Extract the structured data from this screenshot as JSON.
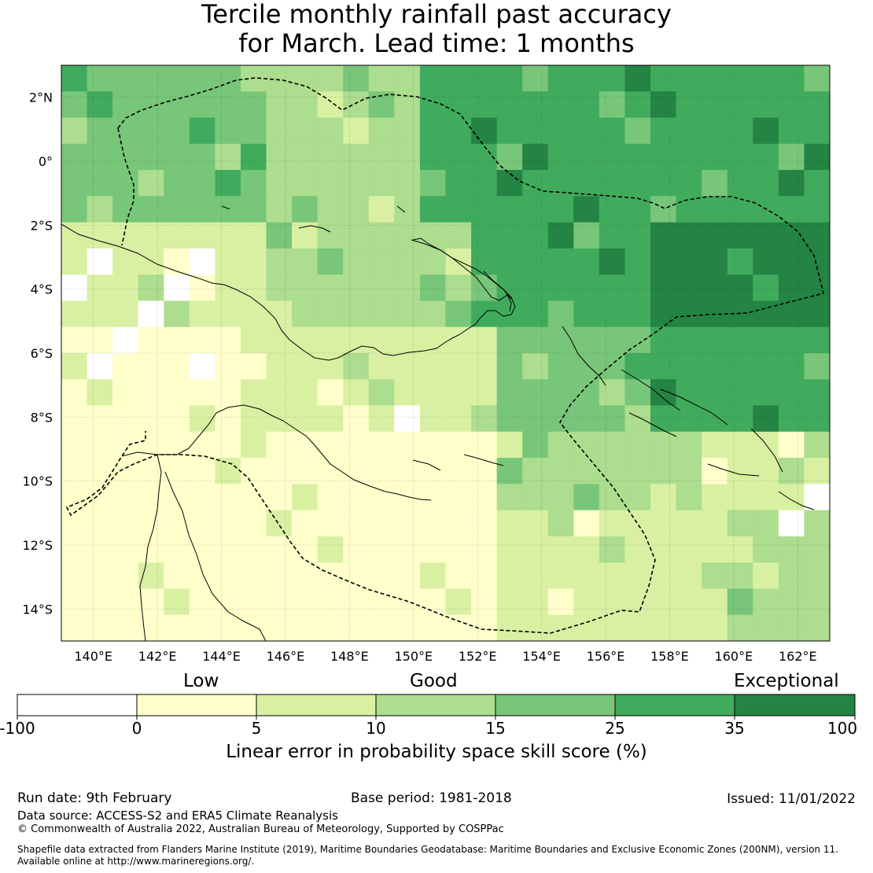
{
  "title": {
    "line1": "Tercile monthly rainfall past accuracy",
    "line2": "for March. Lead time: 1 months"
  },
  "map": {
    "lon_labels": [
      "140°E",
      "142°E",
      "144°E",
      "146°E",
      "148°E",
      "150°E",
      "152°E",
      "154°E",
      "156°E",
      "158°E",
      "160°E",
      "162°E"
    ],
    "lat_labels": [
      "2°N",
      "0°",
      "2°S",
      "4°S",
      "6°S",
      "8°S",
      "10°S",
      "12°S",
      "14°S"
    ],
    "lon_range": [
      139,
      163
    ],
    "lat_range": [
      -15,
      3
    ],
    "colors": {
      "neg": "#ffffff",
      "c0_5": "#ffffcc",
      "c5_10": "#d9f0a3",
      "c10_15": "#addd8e",
      "c15_25": "#78c679",
      "c25_35": "#41ab5d",
      "c35_100": "#238443"
    }
  },
  "colorbar": {
    "category_labels": [
      "Low",
      "Good",
      "Exceptional"
    ],
    "ticks": [
      "-100",
      "0",
      "5",
      "10",
      "15",
      "25",
      "35",
      "100"
    ],
    "caption": "Linear error in probability space skill score (%)"
  },
  "footer": {
    "run_date": "Run date: 9th February",
    "base_period": "Base period: 1981-2018",
    "issued": "Issued: 11/01/2022",
    "data_source": "Data source: ACCESS-S2 and ERA5 Climate Reanalysis",
    "copyright": "© Commonwealth of Australia 2022, Australian Bureau of Meteorology, Supported by COSPPac",
    "shapefile_1": "Shapefile data extracted from Flanders Marine Institute (2019), Maritime Boundaries Geodatabase: Maritime Boundaries and Exclusive Economic Zones (200NM), version 11.",
    "shapefile_2": "Available online at http://www.marineregions.org/."
  }
}
